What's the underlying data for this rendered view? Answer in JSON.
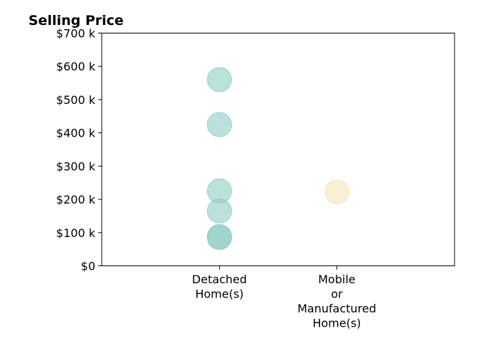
{
  "chart_data": {
    "type": "scatter",
    "title": "Selling Price",
    "xlabel": "",
    "ylabel": "",
    "categories": [
      "Detached Home(s)",
      "Mobile or Manufactured Home(s)"
    ],
    "category_tick_lines": [
      [
        "Detached",
        "Home(s)"
      ],
      [
        "Mobile",
        "or",
        "Manufactured",
        "Home(s)"
      ]
    ],
    "ylim": [
      0,
      700000
    ],
    "y_ticks": [
      0,
      100000,
      200000,
      300000,
      400000,
      500000,
      600000,
      700000
    ],
    "y_tick_labels": [
      "$0",
      "$100 k",
      "$200 k",
      "$300 k",
      "$400 k",
      "$500 k",
      "$600 k",
      "$700 k"
    ],
    "grid": false,
    "series": [
      {
        "category": "Detached Home(s)",
        "color": "#8ecdc4",
        "values": [
          560000,
          425000,
          225000,
          165000,
          88000,
          85000
        ]
      },
      {
        "category": "Mobile or Manufactured Home(s)",
        "color": "#f4e4bc",
        "values": [
          222000
        ]
      }
    ]
  }
}
